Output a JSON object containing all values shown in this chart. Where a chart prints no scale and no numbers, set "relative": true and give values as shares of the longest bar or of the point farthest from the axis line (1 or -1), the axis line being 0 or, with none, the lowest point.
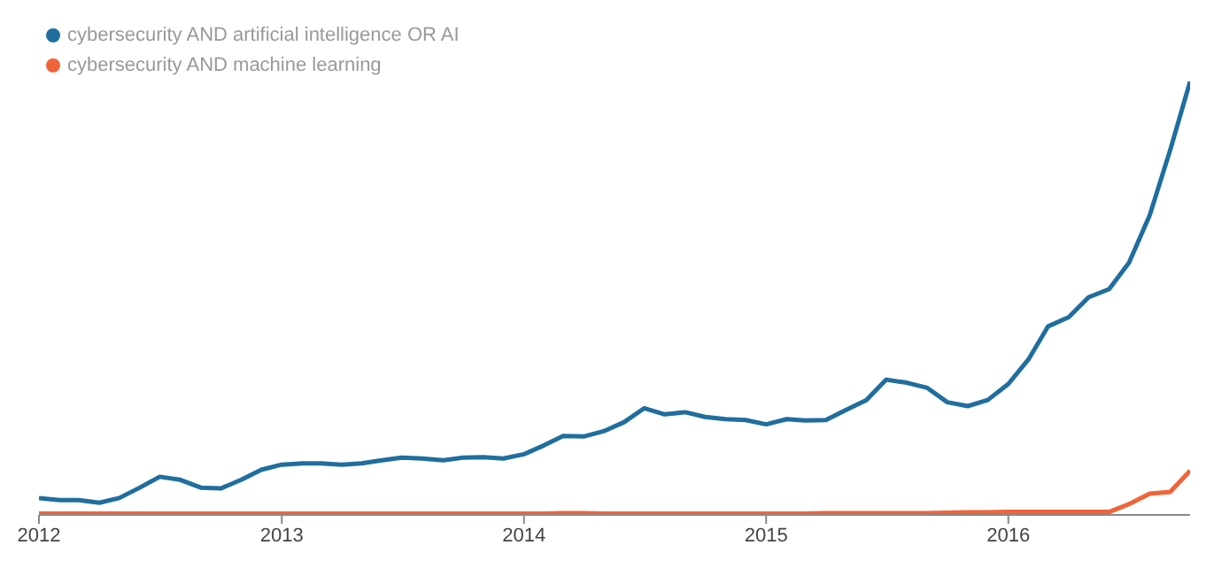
{
  "chart_data": {
    "type": "line",
    "relative": true,
    "legend": "top left",
    "marker": "none",
    "line_style": "solid",
    "grid": false,
    "x": [
      "2012-01",
      "2012-02",
      "2012-03",
      "2012-04",
      "2012-05",
      "2012-06",
      "2012-07",
      "2012-08",
      "2012-09",
      "2012-10",
      "2012-11",
      "2012-12",
      "2013-01",
      "2013-02",
      "2013-03",
      "2013-04",
      "2013-05",
      "2013-06",
      "2013-07",
      "2013-08",
      "2013-09",
      "2013-10",
      "2013-11",
      "2013-12",
      "2014-01",
      "2014-02",
      "2014-03",
      "2014-04",
      "2014-05",
      "2014-06",
      "2014-07",
      "2014-08",
      "2014-09",
      "2014-10",
      "2014-11",
      "2014-12",
      "2015-01",
      "2015-02",
      "2015-03",
      "2015-04",
      "2015-05",
      "2015-06",
      "2015-07",
      "2015-08",
      "2015-09",
      "2015-10",
      "2015-11",
      "2015-12",
      "2016-01",
      "2016-02",
      "2016-03",
      "2016-04",
      "2016-05",
      "2016-06",
      "2016-07",
      "2016-08",
      "2016-09",
      "2016-10"
    ],
    "xlim": [
      "2012-01",
      "2016-10"
    ],
    "xticks": [
      "2012",
      "2013",
      "2014",
      "2015",
      "2016"
    ],
    "series": [
      {
        "name": "cybersecurity AND artificial intelligence OR AI",
        "color": "#1f6e9e",
        "values": [
          0.039,
          0.034,
          0.034,
          0.028,
          0.039,
          0.063,
          0.088,
          0.081,
          0.063,
          0.061,
          0.081,
          0.104,
          0.116,
          0.119,
          0.119,
          0.116,
          0.119,
          0.126,
          0.132,
          0.13,
          0.126,
          0.132,
          0.133,
          0.13,
          0.14,
          0.161,
          0.182,
          0.181,
          0.193,
          0.214,
          0.246,
          0.232,
          0.237,
          0.226,
          0.221,
          0.219,
          0.209,
          0.221,
          0.218,
          0.219,
          0.242,
          0.265,
          0.312,
          0.305,
          0.293,
          0.26,
          0.251,
          0.265,
          0.302,
          0.36,
          0.435,
          0.456,
          0.502,
          0.521,
          0.582,
          0.691,
          0.842,
          1
        ]
      },
      {
        "name": "cybersecurity AND machine learning",
        "color": "#f0643a",
        "values": [
          0.003,
          0.003,
          0.003,
          0.003,
          0.003,
          0.003,
          0.003,
          0.003,
          0.003,
          0.003,
          0.003,
          0.003,
          0.003,
          0.003,
          0.003,
          0.003,
          0.003,
          0.003,
          0.003,
          0.003,
          0.003,
          0.003,
          0.003,
          0.003,
          0.003,
          0.003,
          0.004,
          0.004,
          0.003,
          0.003,
          0.003,
          0.003,
          0.003,
          0.003,
          0.003,
          0.003,
          0.003,
          0.003,
          0.003,
          0.004,
          0.004,
          0.004,
          0.004,
          0.004,
          0.004,
          0.005,
          0.006,
          0.006,
          0.007,
          0.007,
          0.007,
          0.007,
          0.007,
          0.007,
          0.025,
          0.049,
          0.053,
          0.102
        ]
      }
    ]
  }
}
